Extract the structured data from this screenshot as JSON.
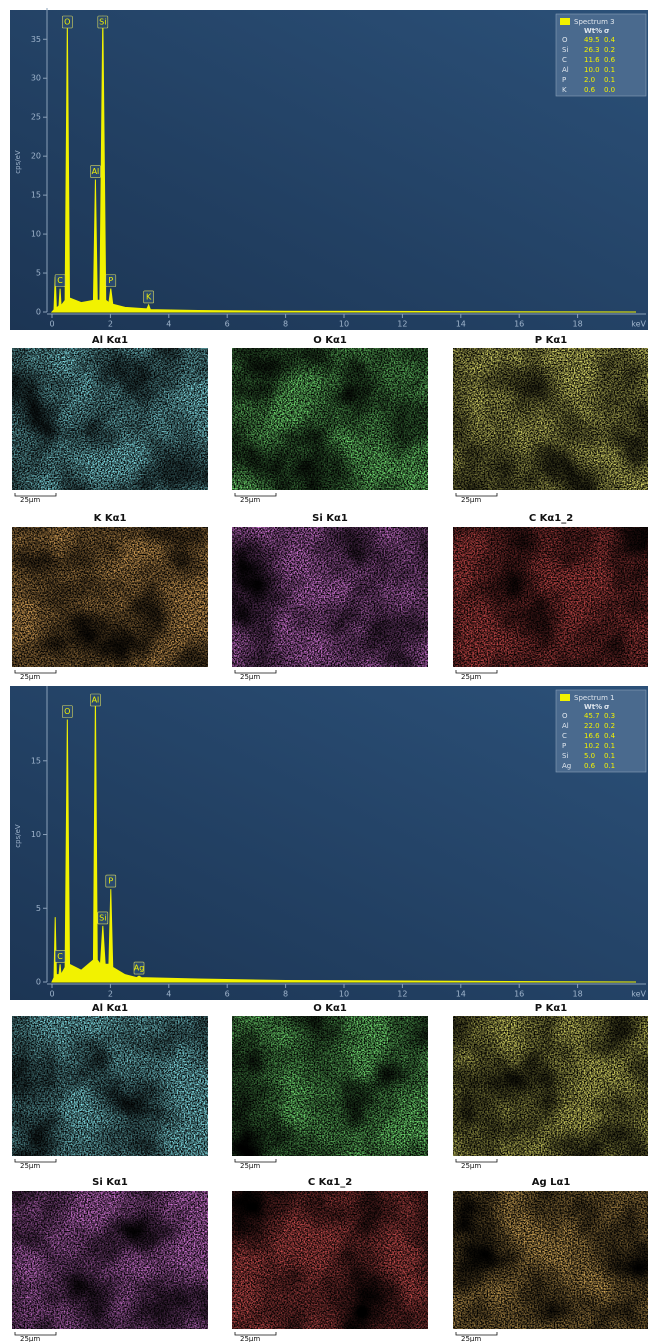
{
  "chart_data": [
    {
      "type": "area",
      "xlabel": "keV",
      "ylabel": "cps/eV",
      "xlim": [
        0,
        20
      ],
      "xticks": [
        0,
        2,
        4,
        6,
        8,
        10,
        12,
        14,
        16,
        18
      ],
      "ylim": [
        0,
        38.5
      ],
      "yticks": [
        0,
        5,
        10,
        15,
        20,
        25,
        30,
        35
      ],
      "series": [
        {
          "name": "Spectrum 3",
          "color": "#f2f200",
          "x": [
            0,
            0.07,
            0.11,
            0.15,
            0.24,
            0.277,
            0.31,
            0.45,
            0.525,
            0.6,
            1.0,
            1.42,
            1.487,
            1.55,
            1.64,
            1.74,
            1.84,
            1.95,
            2.013,
            2.08,
            2.5,
            3.25,
            3.31,
            3.37,
            5,
            8,
            20
          ],
          "values": [
            0,
            0.3,
            4.5,
            0.5,
            0.8,
            3.0,
            0.8,
            1.5,
            37.5,
            1.8,
            1.2,
            1.5,
            17.0,
            1.5,
            1.5,
            38.0,
            1.5,
            1.2,
            3.0,
            1.0,
            0.6,
            0.4,
            0.9,
            0.3,
            0.2,
            0.1,
            0
          ]
        }
      ],
      "annotations": [
        "O",
        "Si",
        "Al",
        "C",
        "P",
        "K"
      ],
      "table": {
        "header": [
          "Wt%",
          "σ"
        ],
        "rows": [
          [
            "O",
            "49.5",
            "0.4"
          ],
          [
            "Si",
            "26.3",
            "0.2"
          ],
          [
            "C",
            "11.6",
            "0.6"
          ],
          [
            "Al",
            "10.0",
            "0.1"
          ],
          [
            "P",
            "2.0",
            "0.1"
          ],
          [
            "K",
            "0.6",
            "0.0"
          ]
        ]
      }
    },
    {
      "type": "area",
      "xlabel": "keV",
      "ylabel": "cps/eV",
      "xlim": [
        0,
        20
      ],
      "xticks": [
        0,
        2,
        4,
        6,
        8,
        10,
        12,
        14,
        16,
        18
      ],
      "ylim": [
        0,
        19.8
      ],
      "yticks": [
        0,
        5,
        10,
        15
      ],
      "series": [
        {
          "name": "Spectrum 1",
          "color": "#f2f200",
          "x": [
            0,
            0.07,
            0.11,
            0.15,
            0.24,
            0.277,
            0.31,
            0.45,
            0.525,
            0.6,
            1.0,
            1.42,
            1.487,
            1.55,
            1.66,
            1.74,
            1.82,
            1.95,
            2.013,
            2.08,
            2.5,
            2.9,
            2.98,
            3.06,
            5,
            8,
            20
          ],
          "values": [
            0,
            0.3,
            4.4,
            0.5,
            0.5,
            1.2,
            0.5,
            1.0,
            17.8,
            1.2,
            0.8,
            1.5,
            19.5,
            1.5,
            1.2,
            3.8,
            1.2,
            1.2,
            6.3,
            1.0,
            0.5,
            0.3,
            0.4,
            0.3,
            0.2,
            0.1,
            0
          ]
        }
      ],
      "annotations": [
        "Al",
        "O",
        "C",
        "P",
        "Si",
        "Ag"
      ],
      "table": {
        "header": [
          "Wt%",
          "σ"
        ],
        "rows": [
          [
            "O",
            "45.7",
            "0.3"
          ],
          [
            "Al",
            "22.0",
            "0.2"
          ],
          [
            "C",
            "16.6",
            "0.4"
          ],
          [
            "P",
            "10.2",
            "0.1"
          ],
          [
            "Si",
            "5.0",
            "0.1"
          ],
          [
            "Ag",
            "0.6",
            "0.1"
          ]
        ]
      }
    }
  ],
  "map_sets": [
    {
      "maps": [
        {
          "title": "Al Kα1",
          "color": "#3cc8d8"
        },
        {
          "title": "O Kα1",
          "color": "#2ecc2e"
        },
        {
          "title": "P Kα1",
          "color": "#c8c428"
        },
        {
          "title": "K Kα1",
          "color": "#c0641a"
        },
        {
          "title": "Si Kα1",
          "color": "#b030b8"
        },
        {
          "title": "C Kα1_2",
          "color": "#8c1010"
        }
      ]
    },
    {
      "maps": [
        {
          "title": "Al Kα1",
          "color": "#3cc8d8"
        },
        {
          "title": "O Kα1",
          "color": "#2ecc2e"
        },
        {
          "title": "P Kα1",
          "color": "#b8b422"
        },
        {
          "title": "Si Kα1",
          "color": "#b030b8"
        },
        {
          "title": "C Kα1_2",
          "color": "#a01414"
        },
        {
          "title": "Ag Lα1",
          "color": "#a86418"
        }
      ]
    }
  ],
  "scale_bar": "25μm"
}
